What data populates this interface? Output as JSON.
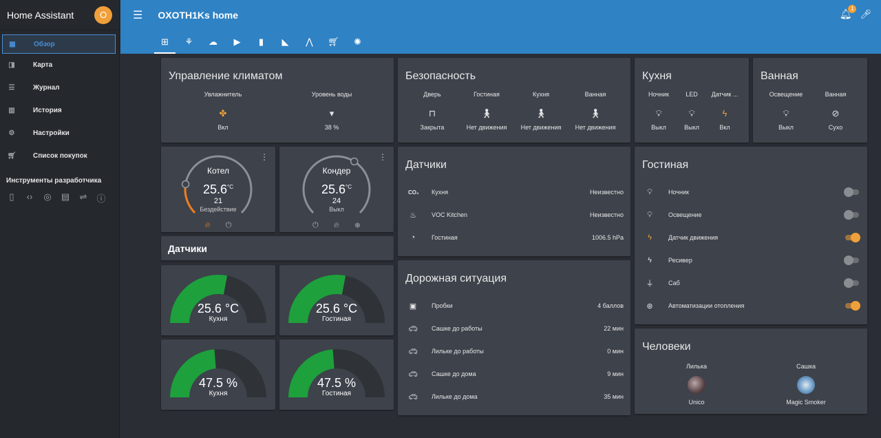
{
  "app_title": "Home Assistant",
  "user_initial": "O",
  "sidebar": {
    "items": [
      {
        "label": "Обзор",
        "icon": "grid-icon",
        "active": true
      },
      {
        "label": "Карта",
        "icon": "map-icon"
      },
      {
        "label": "Журнал",
        "icon": "list-icon"
      },
      {
        "label": "История",
        "icon": "chart-icon"
      },
      {
        "label": "Настройки",
        "icon": "gear-icon"
      },
      {
        "label": "Список покупок",
        "icon": "cart-icon"
      }
    ],
    "dev_tools_label": "Инструменты разработчика"
  },
  "header": {
    "title": "OXOTH1Ks home",
    "notification_count": "1"
  },
  "tabs": [
    "dashboard",
    "network",
    "weather",
    "media",
    "remote",
    "camera",
    "graph",
    "cart",
    "bug"
  ],
  "climate_card": {
    "title": "Управление климатом",
    "entities": [
      {
        "name": "Увлажнитель",
        "state": "Вкл",
        "icon": "fan-icon"
      },
      {
        "name": "Уровень воды",
        "state": "38 %",
        "icon": "cup-icon"
      }
    ]
  },
  "security_card": {
    "title": "Безопасность",
    "entities": [
      {
        "name": "Дверь",
        "state": "Закрыта",
        "icon": "door-icon"
      },
      {
        "name": "Гостиная",
        "state": "Нет движения",
        "icon": "walk-icon"
      },
      {
        "name": "Кухня",
        "state": "Нет движения",
        "icon": "walk-icon"
      },
      {
        "name": "Ванная",
        "state": "Нет движения",
        "icon": "walk-icon"
      }
    ]
  },
  "kitchen_card": {
    "title": "Кухня",
    "entities": [
      {
        "name": "Ночник",
        "state": "Выкл",
        "icon": "bulb-icon"
      },
      {
        "name": "LED",
        "state": "Выкл",
        "icon": "bulb-icon"
      },
      {
        "name": "Датчик ...",
        "state": "Вкл",
        "icon": "bolt-icon"
      }
    ]
  },
  "bath_card": {
    "title": "Ванная",
    "entities": [
      {
        "name": "Освещение",
        "state": "Выкл",
        "icon": "bulb-icon"
      },
      {
        "name": "Ванная",
        "state": "Сухо",
        "icon": "drop-off-icon"
      }
    ]
  },
  "thermostats": [
    {
      "name": "Котел",
      "temp": "25.6",
      "unit": "°C",
      "target": "21",
      "status": "Бездействие",
      "level": 0.2
    },
    {
      "name": "Кондер",
      "temp": "25.6",
      "unit": "°C",
      "target": "24",
      "status": "Выкл",
      "level": 0.62
    }
  ],
  "sensors_label": "Датчики",
  "gauges": [
    {
      "value": "25.6 °C",
      "name": "Кухня",
      "level": 0.56
    },
    {
      "value": "25.6 °C",
      "name": "Гостиная",
      "level": 0.56
    },
    {
      "value": "47.5 %",
      "name": "Кухня",
      "level": 0.475
    },
    {
      "value": "47.5 %",
      "name": "Гостиная",
      "level": 0.475
    }
  ],
  "sensors_card": {
    "title": "Датчики",
    "rows": [
      {
        "icon": "co2-icon",
        "name": "Кухня",
        "value": "Неизвестно"
      },
      {
        "icon": "voc-icon",
        "name": "VOC Kitchen",
        "value": "Неизвестно"
      },
      {
        "icon": "gauge-icon",
        "name": "Гостиная",
        "value": "1006.5 hPa"
      }
    ]
  },
  "traffic_card": {
    "title": "Дорожная ситуация",
    "rows": [
      {
        "icon": "traffic-light-icon",
        "name": "Пробки",
        "value": "4 баллов"
      },
      {
        "icon": "car-icon",
        "name": "Сашке до работы",
        "value": "22 мин"
      },
      {
        "icon": "car-icon",
        "name": "Лильке до работы",
        "value": "0 мин"
      },
      {
        "icon": "car-icon",
        "name": "Сашке до дома",
        "value": "9 мин"
      },
      {
        "icon": "car-icon",
        "name": "Лильке до дома",
        "value": "35 мин"
      }
    ]
  },
  "living_card": {
    "title": "Гостиная",
    "rows": [
      {
        "icon": "bulb-icon",
        "name": "Ночник",
        "on": false
      },
      {
        "icon": "bulb-icon",
        "name": "Освещение",
        "on": false
      },
      {
        "icon": "bolt-icon",
        "name": "Датчик движения",
        "on": true
      },
      {
        "icon": "bolt-icon",
        "name": "Ресивер",
        "on": false
      },
      {
        "icon": "plug-icon",
        "name": "Саб",
        "on": false
      },
      {
        "icon": "robot-icon",
        "name": "Автоматизации отопления",
        "on": true
      }
    ]
  },
  "people_card": {
    "title": "Человеки",
    "people": [
      {
        "name": "Лилька",
        "state": "Unico"
      },
      {
        "name": "Сашка",
        "state": "Magic Smoker"
      }
    ]
  },
  "colors": {
    "accent": "#f0a03a",
    "header": "#2f82c4",
    "gauge_fill": "#1ea03c",
    "card": "#3d424b"
  }
}
